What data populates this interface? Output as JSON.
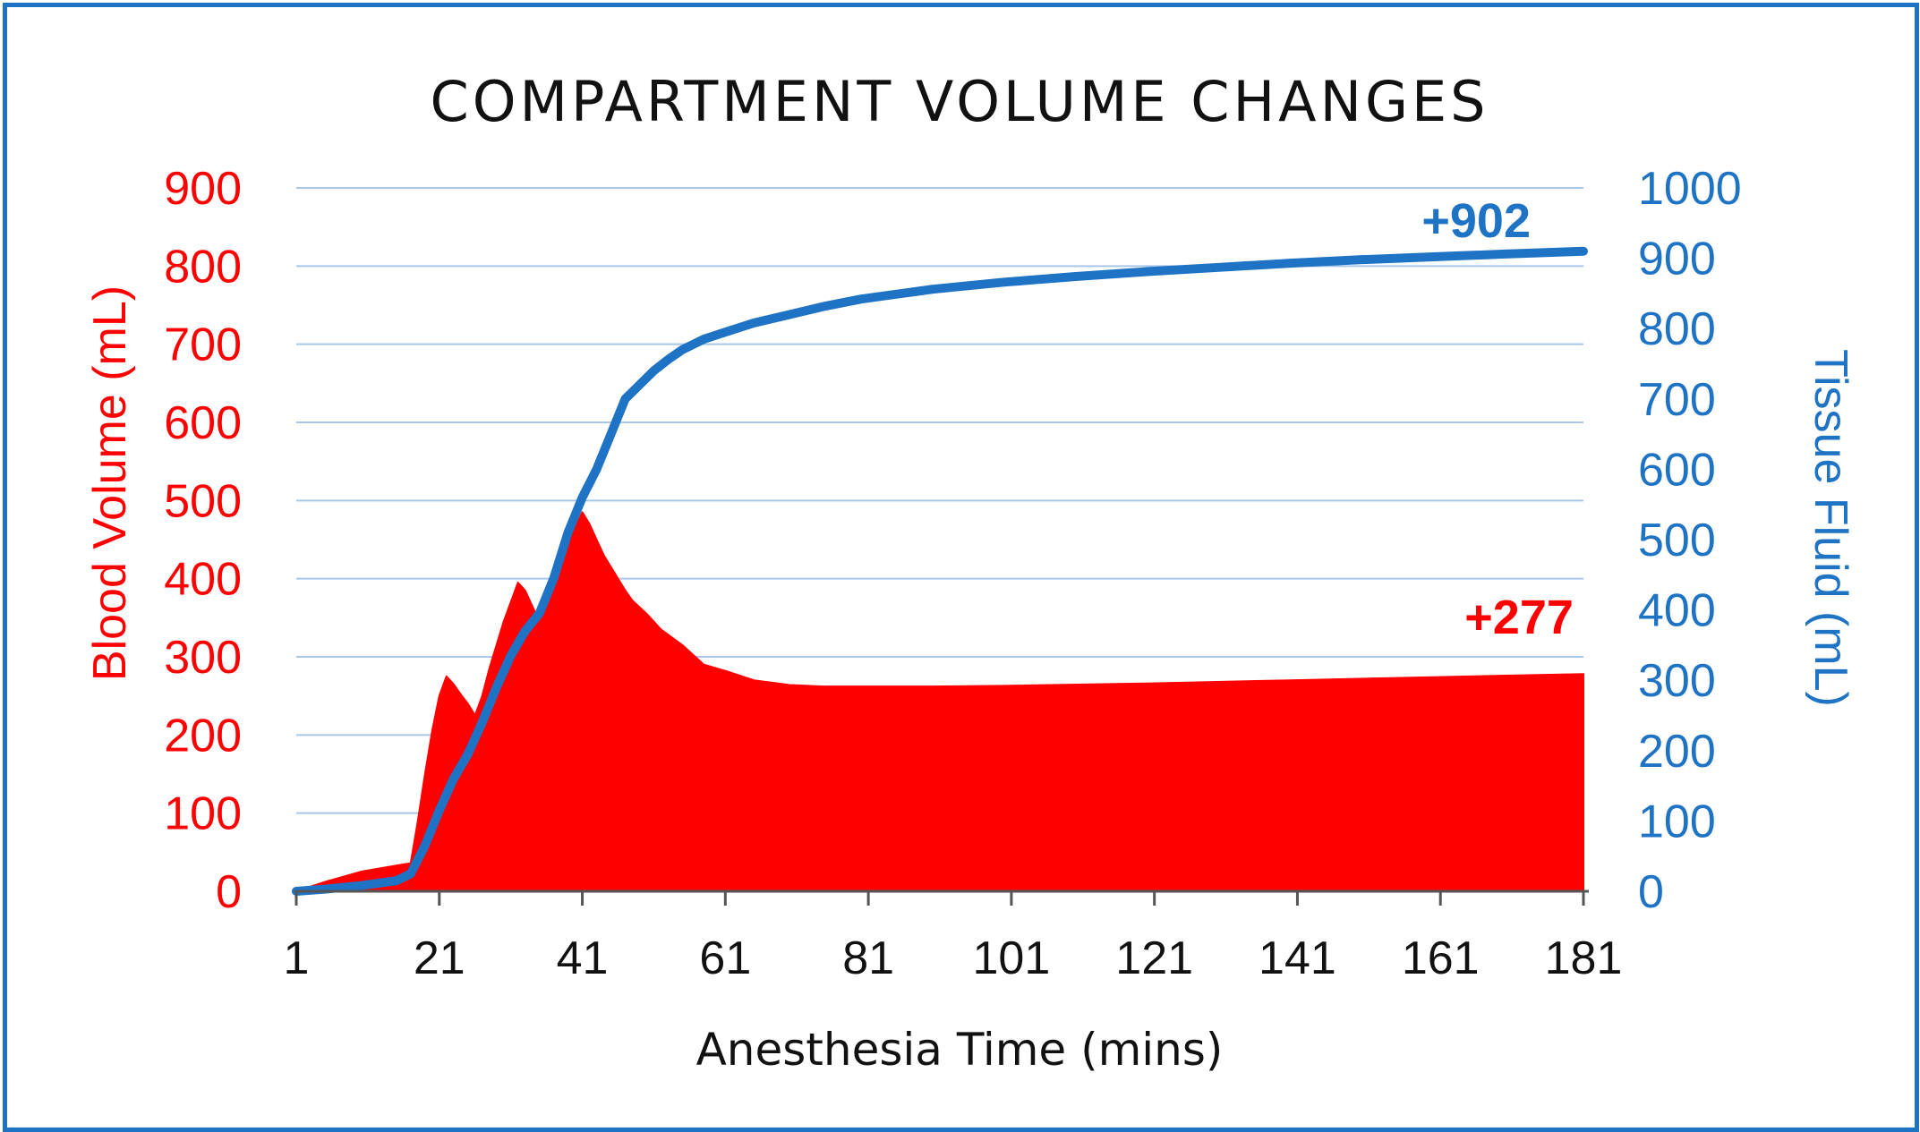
{
  "chart_data": {
    "type": "area",
    "title": "COMPARTMENT VOLUME CHANGES",
    "xlabel": "Anesthesia Time (mins)",
    "ylabel_left": "Blood  Volume (mL)",
    "ylabel_right": "Tissue Fluid (mL)",
    "xlim": [
      1,
      181
    ],
    "ylim_left": [
      0,
      900
    ],
    "ylim_right": [
      0,
      1000
    ],
    "x_ticks": [
      "1",
      "21",
      "41",
      "61",
      "81",
      "101",
      "121",
      "141",
      "161",
      "181"
    ],
    "y_left_ticks": [
      "0",
      "100",
      "200",
      "300",
      "400",
      "500",
      "600",
      "700",
      "800",
      "900"
    ],
    "y_right_ticks": [
      "0",
      "100",
      "200",
      "300",
      "400",
      "500",
      "600",
      "700",
      "800",
      "900",
      "1000"
    ],
    "grid": true,
    "series": [
      {
        "name": "Blood Volume",
        "axis": "left",
        "color": "#ff0000",
        "kind": "area",
        "x": [
          1,
          5,
          10,
          15,
          17,
          18,
          19,
          20,
          21,
          22,
          23,
          24,
          25,
          26,
          27,
          28,
          29,
          30,
          31,
          32,
          33,
          34,
          35,
          36,
          37,
          38,
          39,
          40,
          41,
          42,
          43,
          44,
          45,
          46,
          47,
          48,
          50,
          52,
          55,
          58,
          61,
          65,
          70,
          75,
          80,
          90,
          100,
          120,
          140,
          160,
          181
        ],
        "values": [
          0,
          12,
          25,
          33,
          36,
          90,
          150,
          205,
          250,
          275,
          265,
          252,
          240,
          225,
          250,
          285,
          315,
          345,
          370,
          395,
          385,
          365,
          345,
          370,
          395,
          420,
          445,
          465,
          485,
          470,
          450,
          430,
          415,
          400,
          385,
          372,
          355,
          335,
          315,
          290,
          282,
          270,
          264,
          262,
          262,
          262,
          263,
          266,
          270,
          274,
          278
        ]
      },
      {
        "name": "Tissue Fluid",
        "axis": "right",
        "color": "#1f73c4",
        "kind": "line",
        "x": [
          1,
          5,
          10,
          15,
          17,
          19,
          21,
          23,
          25,
          27,
          29,
          31,
          33,
          35,
          37,
          39,
          41,
          43,
          45,
          47,
          49,
          51,
          53,
          55,
          58,
          61,
          65,
          70,
          75,
          80,
          90,
          100,
          110,
          120,
          130,
          140,
          150,
          160,
          170,
          181
        ],
        "values": [
          0,
          3,
          8,
          15,
          25,
          65,
          115,
          160,
          195,
          240,
          290,
          335,
          370,
          395,
          445,
          510,
          560,
          600,
          650,
          700,
          720,
          740,
          756,
          770,
          785,
          795,
          808,
          820,
          832,
          842,
          856,
          866,
          874,
          881,
          887,
          893,
          898,
          902,
          906,
          910
        ]
      }
    ],
    "annotations": [
      {
        "text": "+902",
        "series": "Tissue Fluid",
        "x": 166,
        "y": 930
      },
      {
        "text": "+277",
        "series": "Blood Volume",
        "x": 172,
        "y": 330
      }
    ]
  }
}
